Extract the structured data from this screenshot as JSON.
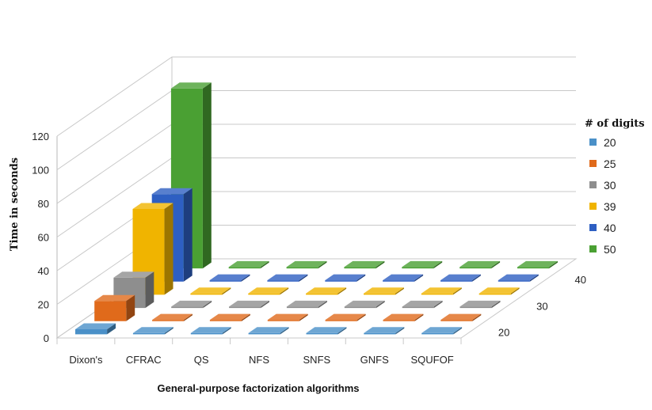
{
  "chart_data": {
    "type": "bar",
    "title": "",
    "xlabel": "General-purpose factorization algorithms",
    "ylabel": "Time in seconds",
    "ylim": [
      0,
      120
    ],
    "yticks": [
      "0",
      "20",
      "40",
      "60",
      "80",
      "100",
      "120"
    ],
    "categories": [
      "Dixon's",
      "CFRAC",
      "QS",
      "NFS",
      "SNFS",
      "GNFS",
      "SQUFOF"
    ],
    "depth_ticks": [
      "20",
      "30",
      "40"
    ],
    "grid": true,
    "legend_title": "# of digits",
    "legend_position": "right",
    "series": [
      {
        "name": "20",
        "color": "#4a90c8",
        "values": [
          3,
          0.3,
          0.3,
          0.3,
          0.3,
          0.3,
          0.3
        ]
      },
      {
        "name": "25",
        "color": "#e06a1b",
        "values": [
          12,
          0.3,
          0.3,
          0.3,
          0.3,
          0.3,
          0.3
        ]
      },
      {
        "name": "30",
        "color": "#8e8e8e",
        "values": [
          18,
          0.3,
          0.3,
          0.3,
          0.3,
          0.3,
          0.3
        ]
      },
      {
        "name": "39",
        "color": "#f0b400",
        "values": [
          51,
          0.3,
          0.3,
          0.3,
          0.3,
          0.3,
          0.3
        ]
      },
      {
        "name": "40",
        "color": "#2e5fc2",
        "values": [
          52,
          0.3,
          0.3,
          0.3,
          0.3,
          0.3,
          0.3
        ]
      },
      {
        "name": "50",
        "color": "#4aa033",
        "values": [
          107,
          0.4,
          0.3,
          0.3,
          0.3,
          0.3,
          0.3
        ]
      }
    ]
  }
}
